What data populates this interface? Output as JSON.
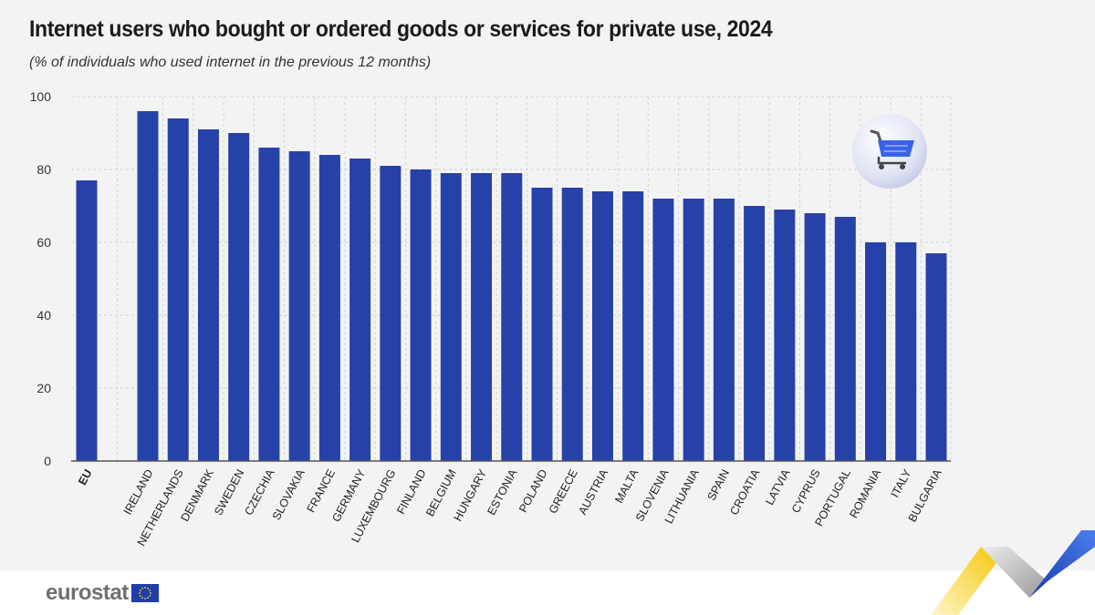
{
  "chart_data": {
    "type": "bar",
    "title": "Internet users who bought or ordered goods or services for private use, 2024",
    "subtitle": "(% of individuals who used internet in the previous 12 months)",
    "ylim": [
      0,
      100
    ],
    "yticks": [
      0,
      20,
      40,
      60,
      80,
      100
    ],
    "categories": [
      "EU",
      "IRELAND",
      "NETHERLANDS",
      "DENMARK",
      "SWEDEN",
      "CZECHIA",
      "SLOVAKIA",
      "FRANCE",
      "GERMANY",
      "LUXEMBOURG",
      "FINLAND",
      "BELGIUM",
      "HUNGARY",
      "ESTONIA",
      "POLAND",
      "GREECE",
      "AUSTRIA",
      "MALTA",
      "SLOVENIA",
      "LITHUANIA",
      "SPAIN",
      "CROATIA",
      "LATVIA",
      "CYPRUS",
      "PORTUGAL",
      "ROMANIA",
      "ITALY",
      "BULGARIA"
    ],
    "values": [
      77,
      96,
      94,
      91,
      90,
      86,
      85,
      84,
      83,
      81,
      80,
      79,
      79,
      79,
      75,
      75,
      74,
      74,
      72,
      72,
      72,
      70,
      69,
      68,
      67,
      60,
      60,
      57
    ],
    "bar_color": "#2642a8",
    "grid": true
  },
  "footer": {
    "logo_text": "eurostat"
  },
  "colors": {
    "background": "#f3f3f3",
    "accent_yellow": "#f5c400",
    "accent_blue": "#2642a8"
  },
  "icon": "shopping-cart-icon"
}
